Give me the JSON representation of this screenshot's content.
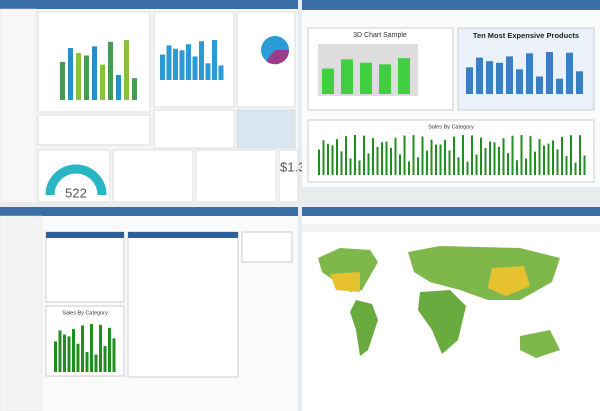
{
  "top_left": {
    "gauge_value": 522,
    "kpi_value": "$1.3"
  },
  "top_right": {
    "chart_3d_title": "3D Chart Sample",
    "products_title": "Ten Most Expensive Products",
    "sales_title": "Sales By Category"
  },
  "bottom_left": {
    "sales_title": "Sales By Category"
  }
}
